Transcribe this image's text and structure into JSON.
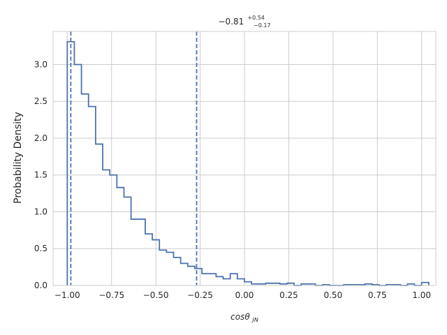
{
  "chart_data": {
    "type": "histogram",
    "title": {
      "main": "−0.81",
      "sup": "+0.54",
      "sub": "−0.17"
    },
    "xlabel": {
      "main": "cosθ",
      "sub": "JN"
    },
    "ylabel": "Probability Density",
    "xlim": [
      -1.08,
      1.08
    ],
    "ylim": [
      0,
      3.45
    ],
    "x_ticks": [
      -1.0,
      -0.75,
      -0.5,
      -0.25,
      0.0,
      0.25,
      0.5,
      0.75,
      1.0
    ],
    "x_tick_labels": [
      "−1.00",
      "−0.75",
      "−0.50",
      "−0.25",
      "0.00",
      "0.25",
      "0.50",
      "0.75",
      "1.00"
    ],
    "y_ticks": [
      0.0,
      0.5,
      1.0,
      1.5,
      2.0,
      2.5,
      3.0
    ],
    "y_tick_labels": [
      "0.0",
      "0.5",
      "1.0",
      "1.5",
      "2.0",
      "2.5",
      "3.0"
    ],
    "grid": true,
    "bin_width": 0.04,
    "bin_start": -1.0,
    "densities": [
      3.31,
      3.0,
      2.6,
      2.43,
      1.92,
      1.57,
      1.5,
      1.33,
      1.2,
      0.9,
      0.9,
      0.7,
      0.62,
      0.48,
      0.45,
      0.38,
      0.3,
      0.26,
      0.23,
      0.16,
      0.16,
      0.12,
      0.09,
      0.16,
      0.09,
      0.05,
      0.02,
      0.02,
      0.03,
      0.03,
      0.02,
      0.03,
      0.0,
      0.02,
      0.02,
      0.0,
      0.01,
      0.0,
      0.0,
      0.01,
      0.01,
      0.01,
      0.02,
      0.01,
      0.0,
      0.01,
      0.01,
      0.0,
      0.02,
      0.0,
      0.04
    ],
    "vlines": [
      -0.98,
      -0.27
    ],
    "colors": {
      "line": "#4c72b0",
      "grid": "#cccccc",
      "axis": "#cccccc",
      "text": "#262626"
    }
  }
}
